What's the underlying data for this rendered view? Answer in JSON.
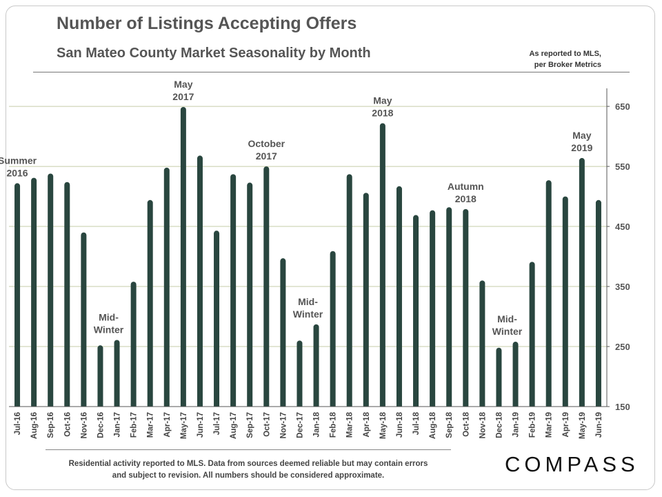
{
  "header": {
    "title": "Number of Listings Accepting Offers",
    "subtitle": "San Mateo County Market Seasonality by Month",
    "source_note_line1": "As reported to MLS,",
    "source_note_line2": "per Broker Metrics"
  },
  "footer": {
    "disclaimer_line1": "Residential activity reported to MLS. Data from sources deemed reliable but may contain errors",
    "disclaimer_line2": "and subject to revision. All numbers should be considered approximate.",
    "logo_text": "COMPASS"
  },
  "colors": {
    "bar": "#29463f",
    "gridline": "#c5cca7",
    "axis": "#555555",
    "text": "#555555"
  },
  "chart_data": {
    "type": "bar",
    "title": "Number of Listings Accepting Offers",
    "subtitle": "San Mateo County Market Seasonality by Month",
    "xlabel": "",
    "ylabel": "",
    "ylim": [
      150,
      680
    ],
    "yticks": [
      150,
      250,
      350,
      450,
      550,
      650
    ],
    "y_axis_side": "right",
    "grid": true,
    "categories": [
      "Jul-16",
      "Aug-16",
      "Sep-16",
      "Oct-16",
      "Nov-16",
      "Dec-16",
      "Jan-17",
      "Feb-17",
      "Mar-17",
      "Apr-17",
      "May-17",
      "Jun-17",
      "Jul-17",
      "Aug-17",
      "Sep-17",
      "Oct-17",
      "Nov-17",
      "Dec-17",
      "Jan-18",
      "Feb-18",
      "Mar-18",
      "Apr-18",
      "May-18",
      "Jun-18",
      "Jul-18",
      "Aug-18",
      "Sep-18",
      "Oct-18",
      "Nov-18",
      "Dec-18",
      "Jan-19",
      "Feb-19",
      "Mar-19",
      "Apr-19",
      "May-19",
      "Jun-19"
    ],
    "values": [
      522,
      531,
      538,
      524,
      440,
      252,
      261,
      358,
      494,
      548,
      649,
      568,
      443,
      537,
      523,
      550,
      397,
      260,
      287,
      409,
      537,
      506,
      622,
      517,
      469,
      477,
      482,
      479,
      360,
      248,
      258,
      391,
      527,
      500,
      564,
      494
    ],
    "annotations": [
      {
        "index": 0,
        "lines": [
          "Summer",
          "2016"
        ]
      },
      {
        "index": 5.5,
        "lines": [
          "Mid-",
          "Winter"
        ]
      },
      {
        "index": 10,
        "lines": [
          "May",
          "2017"
        ]
      },
      {
        "index": 15,
        "lines": [
          "October",
          "2017"
        ]
      },
      {
        "index": 17.5,
        "lines": [
          "Mid-",
          "Winter"
        ]
      },
      {
        "index": 22,
        "lines": [
          "May",
          "2018"
        ]
      },
      {
        "index": 27,
        "lines": [
          "Autumn",
          "2018"
        ]
      },
      {
        "index": 29.5,
        "lines": [
          "Mid-",
          "Winter"
        ]
      },
      {
        "index": 34,
        "lines": [
          "May",
          "2019"
        ]
      }
    ]
  }
}
